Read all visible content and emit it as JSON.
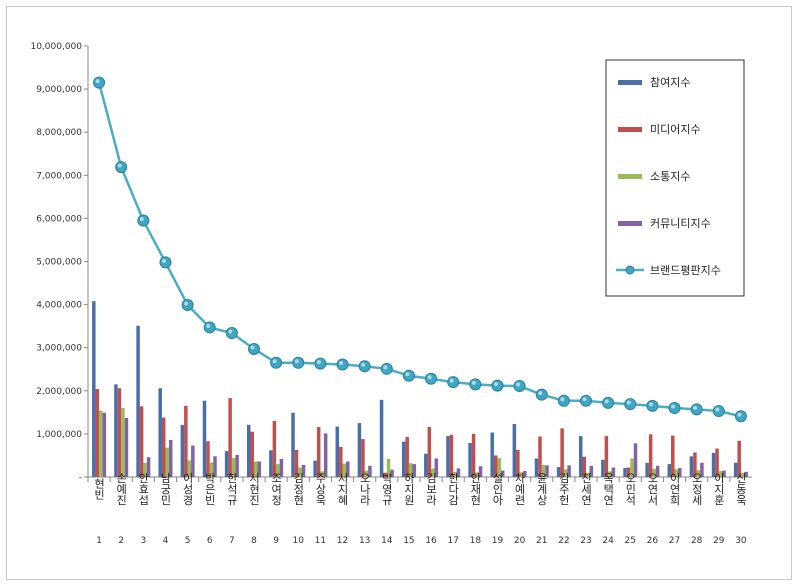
{
  "chart_data": {
    "type": "bar",
    "title": "",
    "xlabel": "",
    "ylabel": "",
    "ylim": [
      0,
      10000000
    ],
    "yticks": [
      "-",
      "1,000,000",
      "2,000,000",
      "3,000,000",
      "4,000,000",
      "5,000,000",
      "6,000,000",
      "7,000,000",
      "8,000,000",
      "9,000,000",
      "10,000,000"
    ],
    "categories": [
      "현빈",
      "손예진",
      "안효섭",
      "남궁민",
      "이성경",
      "박은빈",
      "한석규",
      "서현진",
      "조여정",
      "김정현",
      "주상욱",
      "서지혜",
      "오나라",
      "박영규",
      "하지원",
      "김보라",
      "한다감",
      "안재현",
      "설인아",
      "차예련",
      "윤계상",
      "김주헌",
      "진세연",
      "옥택연",
      "오민석",
      "오연서",
      "이연희",
      "오정세",
      "이지훈",
      "신동욱"
    ],
    "ranks": [
      "1",
      "2",
      "3",
      "4",
      "5",
      "6",
      "7",
      "8",
      "9",
      "10",
      "11",
      "12",
      "13",
      "14",
      "15",
      "16",
      "17",
      "18",
      "19",
      "20",
      "21",
      "22",
      "23",
      "24",
      "25",
      "26",
      "27",
      "28",
      "29",
      "30"
    ],
    "legend_position": "top-right",
    "grid": false,
    "series": [
      {
        "name": "참여지수",
        "type": "bar",
        "color": "#4a6fa8",
        "values": [
          4080000,
          2150000,
          3510000,
          2060000,
          1210000,
          1770000,
          600000,
          1210000,
          620000,
          1490000,
          380000,
          1170000,
          1250000,
          1790000,
          820000,
          540000,
          950000,
          790000,
          1030000,
          1230000,
          430000,
          230000,
          950000,
          400000,
          210000,
          330000,
          300000,
          480000,
          560000,
          330000
        ]
      },
      {
        "name": "미디어지수",
        "type": "bar",
        "color": "#c0504d",
        "values": [
          2040000,
          2060000,
          1640000,
          1380000,
          1650000,
          830000,
          1830000,
          1050000,
          1300000,
          630000,
          1160000,
          700000,
          880000,
          100000,
          930000,
          1160000,
          980000,
          1000000,
          500000,
          630000,
          940000,
          1130000,
          470000,
          950000,
          220000,
          990000,
          960000,
          570000,
          660000,
          840000
        ]
      },
      {
        "name": "소통지수",
        "type": "bar",
        "color": "#9bbb59",
        "values": [
          1540000,
          1600000,
          330000,
          680000,
          390000,
          340000,
          440000,
          360000,
          300000,
          220000,
          130000,
          310000,
          150000,
          420000,
          320000,
          200000,
          120000,
          110000,
          440000,
          110000,
          280000,
          180000,
          90000,
          130000,
          430000,
          190000,
          180000,
          160000,
          140000,
          100000
        ]
      },
      {
        "name": "커뮤니티지수",
        "type": "bar",
        "color": "#8064a2",
        "values": [
          1490000,
          1370000,
          460000,
          860000,
          730000,
          480000,
          510000,
          360000,
          420000,
          280000,
          1010000,
          360000,
          260000,
          170000,
          300000,
          430000,
          200000,
          250000,
          150000,
          140000,
          270000,
          270000,
          260000,
          220000,
          780000,
          260000,
          210000,
          330000,
          150000,
          120000
        ]
      },
      {
        "name": "브랜드평판지수",
        "type": "line",
        "color": "#4bacc6",
        "values": [
          9150000,
          7190000,
          5950000,
          4980000,
          3990000,
          3470000,
          3340000,
          2970000,
          2650000,
          2650000,
          2630000,
          2610000,
          2570000,
          2510000,
          2350000,
          2280000,
          2200000,
          2150000,
          2120000,
          2110000,
          1910000,
          1770000,
          1770000,
          1720000,
          1690000,
          1650000,
          1600000,
          1570000,
          1530000,
          1410000
        ]
      }
    ]
  }
}
